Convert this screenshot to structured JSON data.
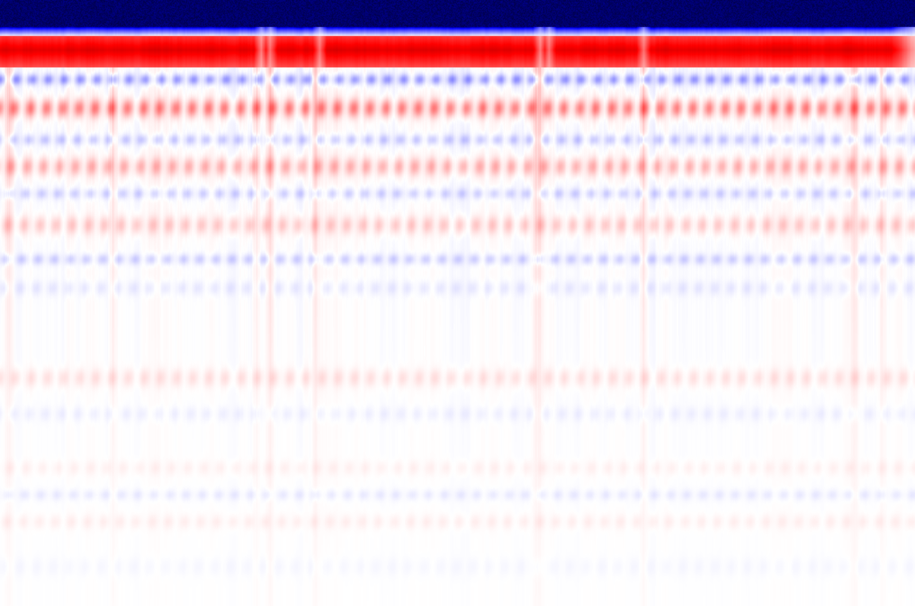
{
  "image": {
    "kind": "diverging-colormap-heatmap",
    "colormap": {
      "negative_strong": "#00004a",
      "negative": "#0000ff",
      "neutral": "#ffffff",
      "positive": "#ff0000",
      "positive_strong": "#d40000"
    },
    "axes_shown": false,
    "text_shown": false
  }
}
